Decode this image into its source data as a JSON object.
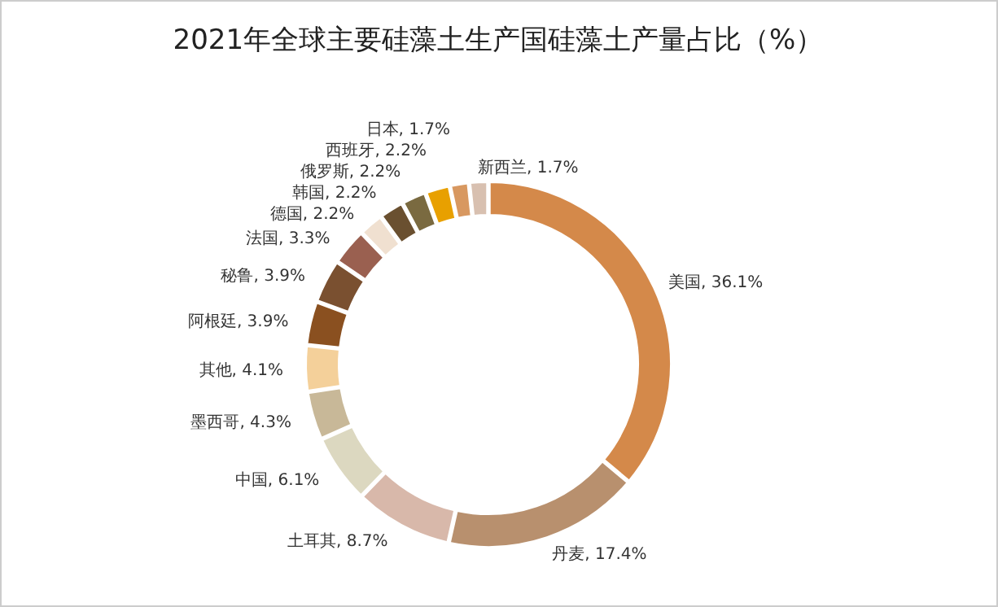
{
  "chart_data": {
    "type": "donut",
    "title": "2021年全球主要硅藻土生产国硅藻土产量占比（%）",
    "categories": [
      "美国",
      "丹麦",
      "土耳其",
      "中国",
      "墨西哥",
      "其他",
      "阿根廷",
      "秘鲁",
      "法国",
      "德国",
      "韩国",
      "俄罗斯",
      "西班牙",
      "日本",
      "新西兰"
    ],
    "values": [
      36.1,
      17.4,
      8.7,
      6.1,
      4.3,
      4.1,
      3.9,
      3.9,
      3.3,
      2.2,
      2.2,
      2.2,
      2.2,
      1.7,
      1.7
    ],
    "colors": [
      "#d4894a",
      "#b8906e",
      "#d8b8aa",
      "#dcd8c0",
      "#c8b898",
      "#f4d09a",
      "#8a5020",
      "#7a5030",
      "#9a6050",
      "#f0e0d0",
      "#6a5030",
      "#7a6a40",
      "#e8a000",
      "#d89860",
      "#d8c0b0"
    ],
    "value_labels": [
      "36.1%",
      "17.4%",
      "8.7%",
      "6.1%",
      "4.3%",
      "4.1%",
      "3.9%",
      "3.9%",
      "3.3%",
      "2.2%",
      "2.2%",
      "2.2%",
      "2.2%",
      "1.7%",
      "1.7%"
    ]
  }
}
